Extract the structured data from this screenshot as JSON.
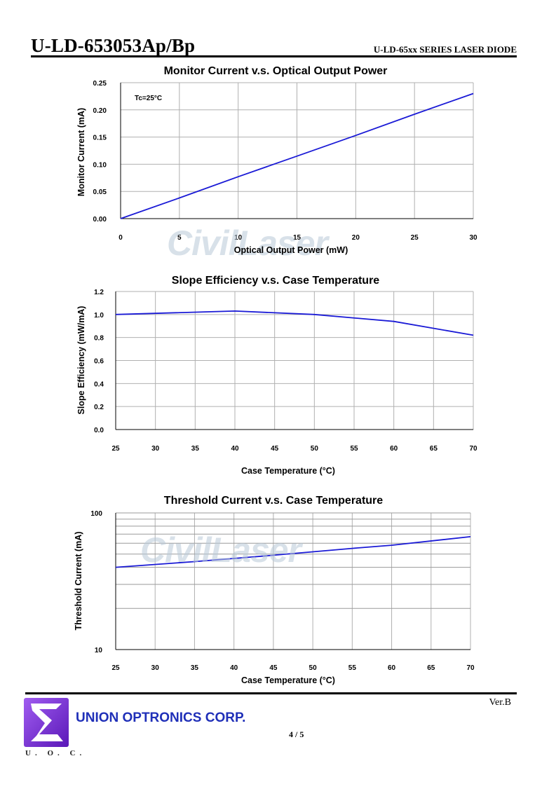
{
  "header": {
    "part_number": "U-LD-653053Ap/Bp",
    "series": "U-LD-65xx SERIES LASER DIODE"
  },
  "watermark": "CivilLaser",
  "chart_data": [
    {
      "type": "line",
      "title": "Monitor Current v.s. Optical Output Power",
      "xlabel": "Optical Output Power (mW)",
      "ylabel": "Monitor Current (mA)",
      "annotation": "Tc=25°C",
      "xlim": [
        0,
        30
      ],
      "ylim": [
        0,
        0.25
      ],
      "xticks": [
        0,
        5,
        10,
        15,
        20,
        25,
        30
      ],
      "xtick_labels": [
        "0",
        "5",
        "10",
        "15",
        "20",
        "25",
        "30"
      ],
      "yticks": [
        0,
        0.05,
        0.1,
        0.15,
        0.2,
        0.25
      ],
      "ytick_labels": [
        "0.00",
        "0.05",
        "0.10",
        "0.15",
        "0.20",
        "0.25"
      ],
      "grid": true,
      "line_color": "#1a1ad6",
      "series": [
        {
          "x": [
            0,
            5,
            10,
            15,
            20,
            25,
            30
          ],
          "y": [
            0.0,
            0.038,
            0.077,
            0.115,
            0.153,
            0.192,
            0.23
          ]
        }
      ]
    },
    {
      "type": "line",
      "title": "Slope Efficiency v.s. Case Temperature",
      "xlabel": "Case Temperature (°C)",
      "ylabel": "Slope Efficiency (mW/mA)",
      "xlim": [
        25,
        70
      ],
      "ylim": [
        0,
        1.2
      ],
      "xticks": [
        25,
        30,
        35,
        40,
        45,
        50,
        55,
        60,
        65,
        70
      ],
      "xtick_labels": [
        "25",
        "30",
        "35",
        "40",
        "45",
        "50",
        "55",
        "60",
        "65",
        "70"
      ],
      "yticks": [
        0,
        0.2,
        0.4,
        0.6,
        0.8,
        1.0,
        1.2
      ],
      "ytick_labels": [
        "0.0",
        "0.2",
        "0.4",
        "0.6",
        "0.8",
        "1.0",
        "1.2"
      ],
      "grid": true,
      "line_color": "#1a1ad6",
      "series": [
        {
          "x": [
            25,
            40,
            50,
            60,
            70
          ],
          "y": [
            1.0,
            1.03,
            1.0,
            0.94,
            0.82
          ]
        }
      ]
    },
    {
      "type": "line",
      "title": "Threshold Current v.s. Case Temperature",
      "xlabel": "Case Temperature (°C)",
      "ylabel": "Threshold Current (mA)",
      "xlim": [
        25,
        70
      ],
      "ylim": [
        10,
        100
      ],
      "yscale": "log",
      "xticks": [
        25,
        30,
        35,
        40,
        45,
        50,
        55,
        60,
        65,
        70
      ],
      "xtick_labels": [
        "25",
        "30",
        "35",
        "40",
        "45",
        "50",
        "55",
        "60",
        "65",
        "70"
      ],
      "ytick_labels": [
        "10",
        "100"
      ],
      "grid": true,
      "line_color": "#1a1ad6",
      "series": [
        {
          "x": [
            25,
            35,
            45,
            55,
            60,
            70
          ],
          "y": [
            40,
            44,
            49,
            55,
            58,
            67
          ]
        }
      ]
    }
  ],
  "footer": {
    "version": "Ver.B",
    "company": "UNION OPTRONICS CORP.",
    "logo_text": "U. O. C.",
    "page": "4 / 5",
    "logo_color": "#7a2fd6"
  }
}
